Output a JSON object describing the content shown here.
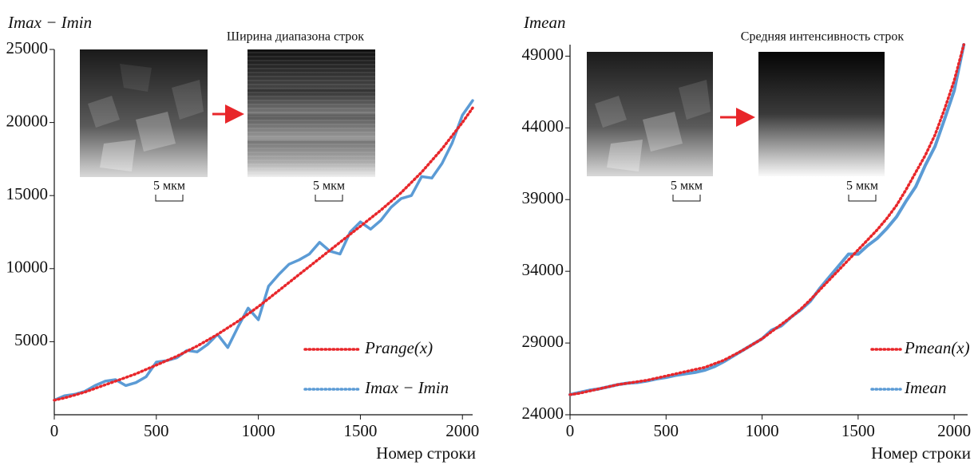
{
  "chart_data": [
    {
      "type": "line",
      "y_label": "Imax − Imin",
      "x_label": "Номер строки",
      "annotations": [
        "Ширина диапазона строк",
        "5 мкм",
        "5 мкм"
      ],
      "x": [
        0,
        50,
        100,
        150,
        200,
        250,
        300,
        350,
        400,
        450,
        500,
        550,
        600,
        650,
        700,
        750,
        800,
        850,
        900,
        950,
        1000,
        1050,
        1100,
        1150,
        1200,
        1250,
        1300,
        1350,
        1400,
        1450,
        1500,
        1550,
        1600,
        1650,
        1700,
        1750,
        1800,
        1850,
        1900,
        1950,
        2000,
        2050
      ],
      "series": [
        {
          "name": "Prange(x)",
          "color": "#e8262a",
          "style": "dotted",
          "values": [
            1000,
            1150,
            1350,
            1550,
            1800,
            2050,
            2300,
            2550,
            2800,
            3100,
            3400,
            3700,
            4000,
            4350,
            4700,
            5100,
            5500,
            5950,
            6400,
            6900,
            7400,
            7950,
            8500,
            9050,
            9600,
            10150,
            10700,
            11250,
            11800,
            12350,
            12900,
            13450,
            14000,
            14600,
            15200,
            15900,
            16600,
            17400,
            18200,
            19100,
            20000,
            21000
          ]
        },
        {
          "name": "Imax − Imin",
          "color": "#5b9bd5",
          "style": "noisy",
          "values": [
            1000,
            1300,
            1400,
            1600,
            2000,
            2300,
            2400,
            2000,
            2200,
            2600,
            3600,
            3700,
            3900,
            4400,
            4300,
            4800,
            5500,
            4600,
            6000,
            7300,
            6500,
            8800,
            9600,
            10300,
            10600,
            11000,
            11800,
            11200,
            11000,
            12500,
            13200,
            12700,
            13300,
            14200,
            14800,
            15000,
            16300,
            16200,
            17200,
            18600,
            20500,
            21500
          ]
        }
      ],
      "xlim": [
        0,
        2050
      ],
      "ylim": [
        0,
        25000
      ],
      "xticks": [
        0,
        500,
        1000,
        1500,
        2000
      ],
      "yticks": [
        5000,
        10000,
        15000,
        20000,
        25000
      ],
      "grid": false,
      "legend": "lower right"
    },
    {
      "type": "line",
      "y_label": "Imean",
      "x_label": "Номер строки",
      "annotations": [
        "Средняя интенсивность строк",
        "5 мкм",
        "5 мкм"
      ],
      "x": [
        0,
        50,
        100,
        150,
        200,
        250,
        300,
        350,
        400,
        450,
        500,
        550,
        600,
        650,
        700,
        750,
        800,
        850,
        900,
        950,
        1000,
        1050,
        1100,
        1150,
        1200,
        1250,
        1300,
        1350,
        1400,
        1450,
        1500,
        1550,
        1600,
        1650,
        1700,
        1750,
        1800,
        1850,
        1900,
        1950,
        2000,
        2050
      ],
      "series": [
        {
          "name": "Pmean(x)",
          "color": "#e8262a",
          "style": "dotted",
          "values": [
            25400,
            25500,
            25650,
            25800,
            25950,
            26100,
            26200,
            26300,
            26400,
            26550,
            26700,
            26850,
            27000,
            27150,
            27300,
            27550,
            27800,
            28150,
            28500,
            28900,
            29300,
            29800,
            30300,
            30800,
            31350,
            32000,
            32700,
            33400,
            34100,
            34800,
            35500,
            36200,
            36900,
            37700,
            38600,
            39700,
            40900,
            42100,
            43500,
            45300,
            47300,
            49800
          ]
        },
        {
          "name": "Imean",
          "color": "#5b9bd5",
          "style": "solid",
          "values": [
            25400,
            25550,
            25700,
            25800,
            25950,
            26100,
            26200,
            26250,
            26350,
            26500,
            26600,
            26750,
            26850,
            26950,
            27100,
            27350,
            27700,
            28100,
            28500,
            28900,
            29300,
            29900,
            30200,
            30800,
            31300,
            31900,
            32800,
            33600,
            34400,
            35200,
            35200,
            35800,
            36300,
            37000,
            37800,
            38900,
            39900,
            41400,
            42700,
            44600,
            46600,
            49800
          ]
        }
      ],
      "xlim": [
        0,
        2070
      ],
      "ylim": [
        24000,
        49800
      ],
      "xticks": [
        0,
        500,
        1000,
        1500,
        2000
      ],
      "yticks": [
        24000,
        29000,
        34000,
        39000,
        44000,
        49000
      ],
      "grid": false,
      "legend": "lower right"
    }
  ]
}
